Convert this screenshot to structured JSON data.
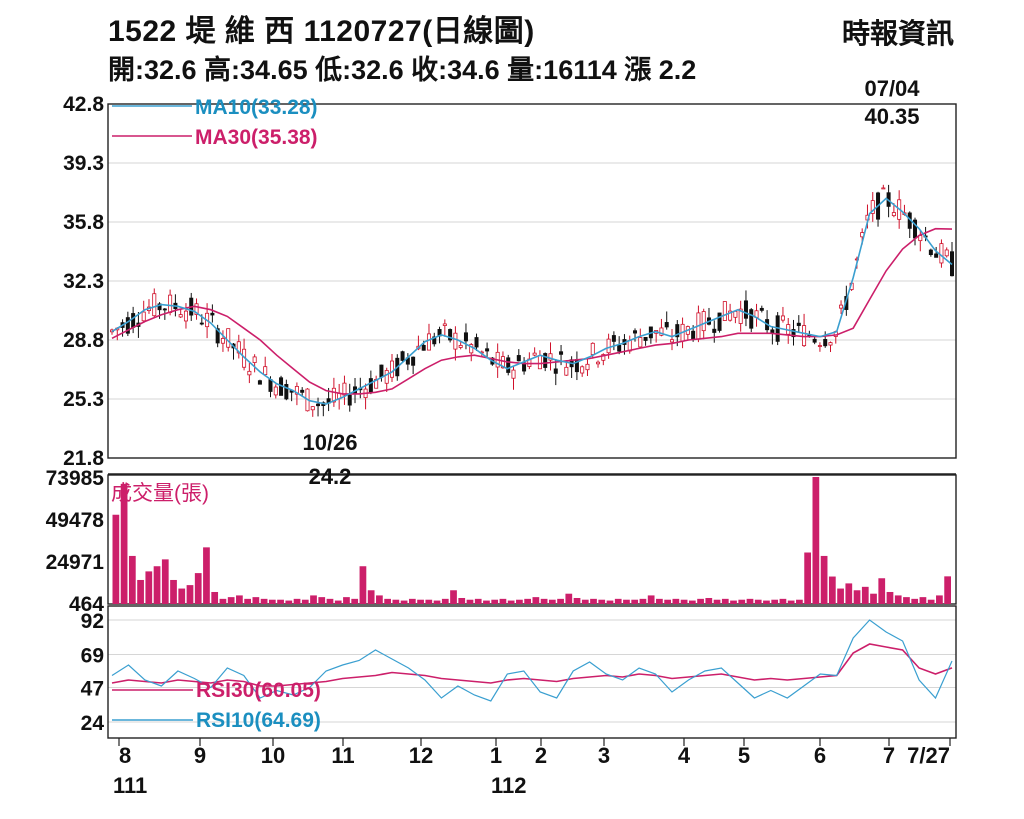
{
  "header": {
    "title": "1522 堤 維 西 1120727(日線圖)",
    "source": "時報資訊",
    "summary": "開:32.6 高:34.65 低:32.6 收:34.6 量:16114 漲 2.2"
  },
  "colors": {
    "ma10": "#3a9fd0",
    "ma30": "#cc1f6a",
    "volume": "#cc1f6a",
    "candle_up": "#d0102a",
    "candle_down": "#111111",
    "grid": "#d6d6d6",
    "frame": "#222222"
  },
  "chart_data": [
    {
      "type": "line",
      "panel": "price",
      "ylim": [
        21.8,
        42.8
      ],
      "yticks": [
        "42.8",
        "39.3",
        "35.8",
        "32.3",
        "28.8",
        "25.3",
        "21.8"
      ],
      "legend": [
        "MA10(33.28)",
        "MA30(35.38)"
      ],
      "annotations": [
        {
          "date": "07/04",
          "value": "40.35"
        },
        {
          "date": "10/26",
          "value": "24.2"
        }
      ],
      "series": [
        {
          "name": "MA10(33.28)",
          "values": [
            29.3,
            29.9,
            30.6,
            30.9,
            30.8,
            30.5,
            29.8,
            28.8,
            27.8,
            26.9,
            26.2,
            25.8,
            25.2,
            25.0,
            25.4,
            25.9,
            26.4,
            26.9,
            27.8,
            28.7,
            29.1,
            28.8,
            28.3,
            27.6,
            27.1,
            27.5,
            27.9,
            27.6,
            27.4,
            27.8,
            28.3,
            28.6,
            29.0,
            29.3,
            29.0,
            29.4,
            29.8,
            30.2,
            30.6,
            30.2,
            29.6,
            29.4,
            29.2,
            29.0,
            29.3,
            32.5,
            36.3,
            37.2,
            36.4,
            35.4,
            34.1,
            33.28
          ]
        },
        {
          "name": "MA30(35.38)",
          "values": [
            28.9,
            29.4,
            29.9,
            30.3,
            30.6,
            30.8,
            30.6,
            30.2,
            29.5,
            28.8,
            27.9,
            27.1,
            26.3,
            25.8,
            25.6,
            25.6,
            25.7,
            25.9,
            26.5,
            27.1,
            27.6,
            27.8,
            27.9,
            27.7,
            27.5,
            27.4,
            27.4,
            27.5,
            27.6,
            27.7,
            27.9,
            28.1,
            28.3,
            28.5,
            28.6,
            28.8,
            28.9,
            29.0,
            29.2,
            29.2,
            29.2,
            29.1,
            29.0,
            29.0,
            29.1,
            29.5,
            31.2,
            32.9,
            34.2,
            35.0,
            35.4,
            35.38
          ]
        }
      ]
    },
    {
      "type": "bar",
      "panel": "volume",
      "title": "成交量(張)",
      "ylim": [
        0,
        73985
      ],
      "yticks": [
        "73985",
        "49478",
        "24971",
        "464"
      ],
      "values": [
        52000,
        70000,
        28000,
        14000,
        19000,
        22000,
        26000,
        14000,
        9000,
        11000,
        18000,
        33000,
        7000,
        3000,
        4000,
        5000,
        3000,
        4000,
        3000,
        2500,
        2500,
        2000,
        3000,
        2500,
        5000,
        4000,
        3000,
        2000,
        4000,
        3000,
        22000,
        8000,
        5000,
        3000,
        2500,
        2000,
        3000,
        2500,
        2500,
        2000,
        3000,
        8000,
        3500,
        2500,
        3000,
        2000,
        2500,
        3000,
        2000,
        2500,
        3000,
        4000,
        3000,
        2500,
        3000,
        6000,
        3500,
        2500,
        3000,
        2500,
        2000,
        3000,
        2500,
        2500,
        3000,
        5000,
        3000,
        2500,
        3000,
        2500,
        2000,
        3000,
        3500,
        2500,
        3000,
        2000,
        2500,
        3000,
        2500,
        2000,
        2500,
        3000,
        2000,
        2500,
        30000,
        73985,
        28000,
        16000,
        9000,
        12000,
        8000,
        10000,
        6000,
        15000,
        7000,
        5000,
        4000,
        3000,
        4000,
        2500,
        5000,
        16114
      ]
    },
    {
      "type": "line",
      "panel": "rsi",
      "ylim": [
        24,
        92
      ],
      "yticks": [
        "92",
        "69",
        "47",
        "24"
      ],
      "legend": [
        "RSI30(60.05)",
        "RSI10(64.69)"
      ],
      "series": [
        {
          "name": "RSI30(60.05)",
          "values": [
            50,
            52,
            51,
            50,
            52,
            51,
            50,
            52,
            51,
            48,
            48,
            49,
            50,
            51,
            53,
            54,
            55,
            57,
            56,
            55,
            53,
            52,
            51,
            50,
            52,
            53,
            52,
            51,
            53,
            54,
            55,
            54,
            56,
            55,
            53,
            54,
            55,
            56,
            54,
            52,
            53,
            52,
            53,
            54,
            55,
            70,
            76,
            74,
            72,
            60,
            56,
            60.05
          ]
        },
        {
          "name": "RSI10(64.69)",
          "values": [
            55,
            62,
            52,
            48,
            58,
            53,
            47,
            60,
            55,
            40,
            45,
            42,
            47,
            58,
            62,
            65,
            72,
            66,
            60,
            52,
            40,
            48,
            42,
            38,
            56,
            58,
            44,
            40,
            58,
            64,
            56,
            52,
            60,
            56,
            44,
            52,
            58,
            60,
            50,
            40,
            45,
            40,
            48,
            56,
            55,
            80,
            92,
            84,
            78,
            52,
            40,
            64.69
          ]
        }
      ]
    }
  ],
  "x_axis": {
    "ticks": [
      "8",
      "9",
      "10",
      "11",
      "12",
      "1",
      "2",
      "3",
      "4",
      "5",
      "6",
      "7",
      "7/27"
    ],
    "years": [
      "111",
      "112"
    ]
  }
}
